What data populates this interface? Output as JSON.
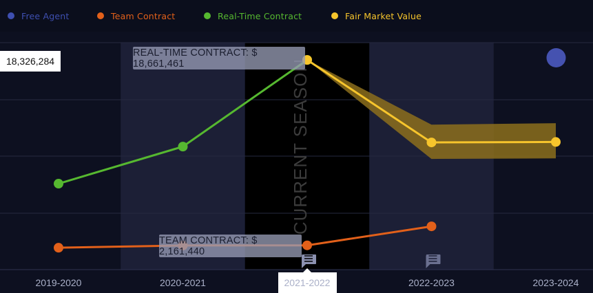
{
  "legend": [
    {
      "label": "Free Agent",
      "color": "#3e4fb0"
    },
    {
      "label": "Team Contract",
      "color": "#e2601a"
    },
    {
      "label": "Real-Time Contract",
      "color": "#56b830"
    },
    {
      "label": "Fair Market Value",
      "color": "#f7c52c"
    }
  ],
  "colors": {
    "background": "#0d1020",
    "band_light": "#1c1f36",
    "current_season": "#000000",
    "band_fill": "#8c6e1c",
    "free_agent_marker": "#4552b0"
  },
  "y_axis_label_text": "18,326,284",
  "current_season_label": "CURRENT SEASON",
  "tooltips": {
    "real_time": "REAL-TIME CONTRACT:  $ 18,661,461",
    "team": "TEAM CONTRACT:  $ 2,161,440"
  },
  "chart_data": {
    "type": "line",
    "categories": [
      "2019-2020",
      "2020-2021",
      "2021-2022",
      "2022-2023",
      "2023-2024"
    ],
    "selected_category": "2021-2022",
    "current_season": "2021-2022",
    "ylim": [
      0,
      20200000
    ],
    "series": [
      {
        "name": "Real-Time Contract",
        "color": "#56b830",
        "values": [
          7650000,
          10950000,
          18661461,
          null,
          null
        ]
      },
      {
        "name": "Team Contract",
        "color": "#e2601a",
        "values": [
          1950000,
          2150000,
          2161440,
          3850000,
          null
        ]
      },
      {
        "name": "Fair Market Value",
        "color": "#f7c52c",
        "values": [
          null,
          null,
          18661461,
          11320000,
          11360000
        ],
        "band_low": [
          null,
          null,
          18661461,
          9850000,
          9900000
        ],
        "band_high": [
          null,
          null,
          18661461,
          12900000,
          13030000
        ]
      },
      {
        "name": "Free Agent",
        "color": "#4552b0",
        "values": [
          null,
          null,
          null,
          null,
          18326284
        ]
      }
    ],
    "annotations": [
      {
        "category": "2021-2022",
        "icon": "comment-icon"
      },
      {
        "category": "2022-2023",
        "icon": "comment-icon"
      }
    ]
  }
}
